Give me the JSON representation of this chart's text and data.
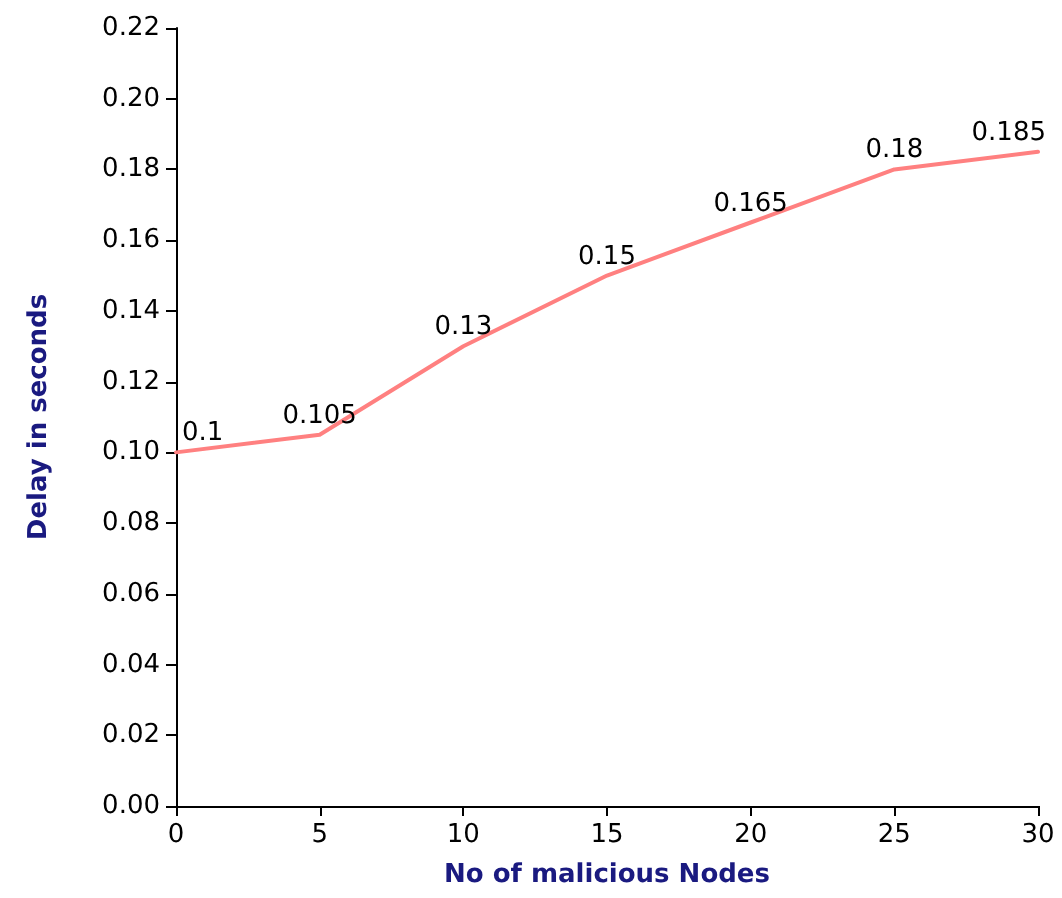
{
  "chart_data": {
    "type": "line",
    "xlabel": "No of malicious Nodes",
    "ylabel": "Delay in seconds",
    "x": [
      0,
      5,
      10,
      15,
      20,
      25,
      30
    ],
    "series": [
      {
        "color": "#ff8080",
        "values": [
          0.1,
          0.105,
          0.13,
          0.15,
          0.165,
          0.18,
          0.185
        ]
      }
    ],
    "xlim": [
      0,
      30
    ],
    "xticks": [
      0,
      5,
      10,
      15,
      20,
      25,
      30
    ],
    "ylim": [
      0,
      0.22
    ],
    "yticks": [
      {
        "value": 0,
        "label": "0.00"
      },
      {
        "value": 0.02,
        "label": "0.02"
      },
      {
        "value": 0.04,
        "label": "0.04"
      },
      {
        "value": 0.06,
        "label": "0.06"
      },
      {
        "value": 0.08,
        "label": "0.08"
      },
      {
        "value": 0.1,
        "label": "0.10"
      },
      {
        "value": 0.12,
        "label": "0.12"
      },
      {
        "value": 0.14,
        "label": "0.14"
      },
      {
        "value": 0.16,
        "label": "0.16"
      },
      {
        "value": 0.18,
        "label": "0.18"
      },
      {
        "value": 0.2,
        "label": "0.20"
      },
      {
        "value": 0.22,
        "label": "0.22"
      }
    ],
    "grid": false,
    "marker": "none",
    "line_style": "solid",
    "data_labels": true
  }
}
